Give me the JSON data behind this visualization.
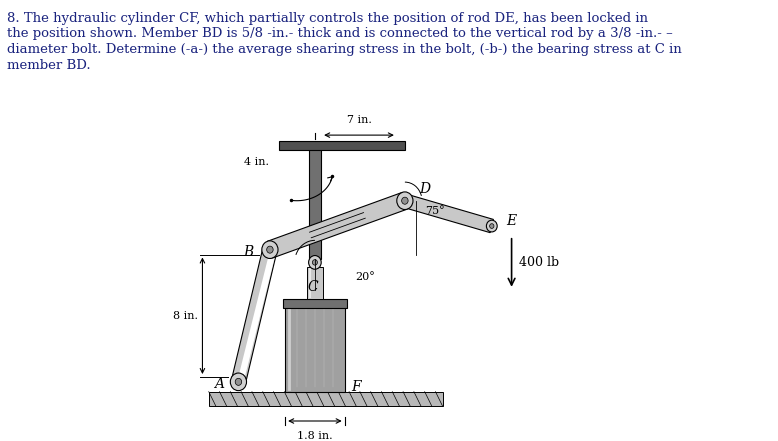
{
  "title_lines": [
    "8. The hydraulic cylinder CF, which partially controls the position of rod DE, has been locked in",
    "the position shown. Member BD is 5/8 ­in.­ thick and is connected to the vertical rod by a 3/8 ­in.­ –",
    "diameter bolt. Determine (­a­) the average shearing stress in the bolt, (­b­) the bearing stress at C in",
    "member BD."
  ],
  "text_color": "#1a237e",
  "bg_color": "#ffffff",
  "gray_light": "#c8c8c8",
  "gray_mid": "#a0a0a0",
  "gray_dark": "#707070",
  "gray_darker": "#505050",
  "ground_color": "#b8b8b8",
  "label_A": "A",
  "label_B": "B",
  "label_C": "C",
  "label_D": "D",
  "label_E": "E",
  "label_F": "F",
  "dim_4in": "4 in.",
  "dim_7in": "7 in.",
  "dim_8in": "8 in.",
  "dim_18in": "1.8 in.",
  "angle_20": "20°",
  "angle_75": "75°",
  "force_label": "400 lb"
}
